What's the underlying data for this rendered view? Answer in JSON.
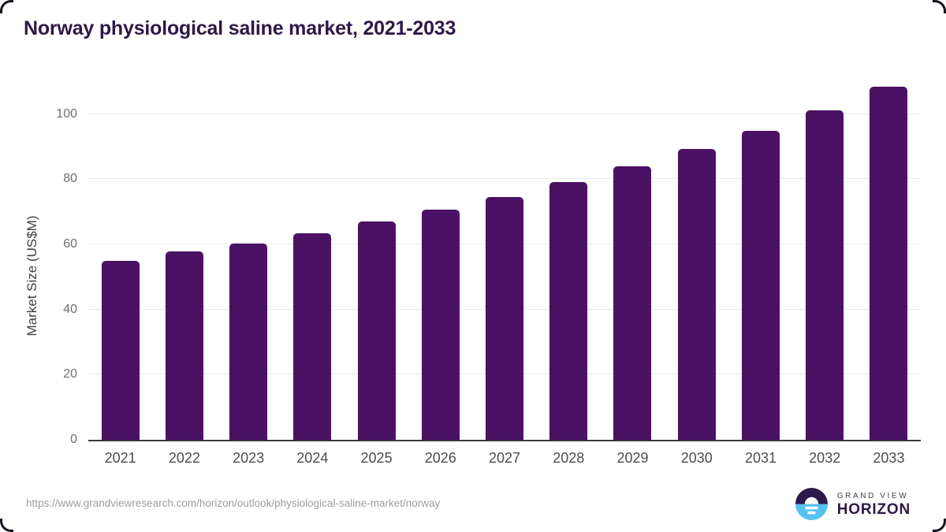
{
  "header": {
    "title": "Norway physiological saline market, 2021-2033"
  },
  "chart_data": {
    "type": "bar",
    "title": "Norway physiological saline market, 2021-2033",
    "categories": [
      "2021",
      "2022",
      "2023",
      "2024",
      "2025",
      "2026",
      "2027",
      "2028",
      "2029",
      "2030",
      "2031",
      "2032",
      "2033"
    ],
    "values": [
      54.9,
      57.9,
      60.3,
      63.4,
      66.9,
      70.7,
      74.4,
      79.0,
      84.0,
      89.3,
      94.8,
      101.2,
      108.4
    ],
    "xlabel": "",
    "ylabel": "Market Size (US$M)",
    "ylim": [
      0,
      110.8
    ],
    "yticks": [
      0,
      20,
      40,
      60,
      80,
      100
    ],
    "grid": true,
    "legend": "none",
    "bar_color": "#4a1164"
  },
  "footer": {
    "source_url": "https://www.grandviewresearch.com/horizon/outlook/physiological-saline-market/norway",
    "brand_line1": "GRAND VIEW",
    "brand_line2": "HORIZON"
  },
  "colors": {
    "title_text": "#2d1945",
    "bar": "#4a1164",
    "x_tick_text": "#4d4d4d",
    "y_tick_text": "#6f6f6f",
    "gridline": "#e9e9e9",
    "baseline": "#3a3a3a",
    "url_text": "#9e9e9e",
    "logo_dark": "#2b1a4a",
    "logo_blue": "#57c2f0"
  }
}
